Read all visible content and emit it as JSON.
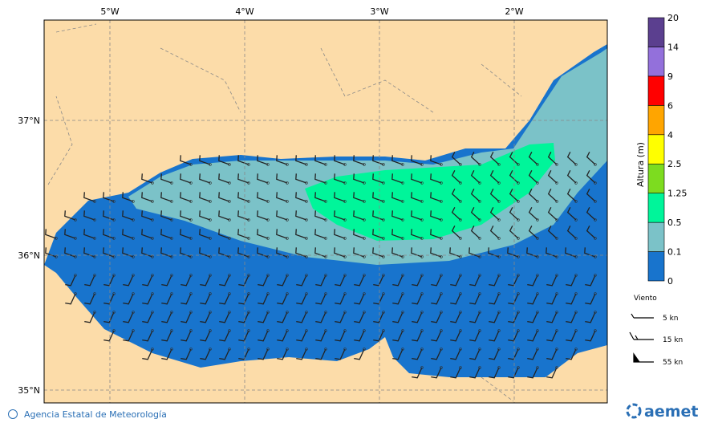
{
  "map": {
    "lon_labels": [
      "5°W",
      "4°W",
      "3°W",
      "2°W"
    ],
    "lat_labels": [
      "37°N",
      "36°N",
      "35°N"
    ]
  },
  "colorbar": {
    "title": "Altura (m)",
    "levels": [
      "0",
      "0.1",
      "0.5",
      "1.25",
      "2.5",
      "4",
      "6",
      "9",
      "14",
      "20"
    ],
    "colors": [
      "#1874cd",
      "#7bc2c8",
      "#00f59a",
      "#7ddc1f",
      "#ffff00",
      "#ffa500",
      "#ff0000",
      "#9370db",
      "#5b3f8f"
    ]
  },
  "wind_legend": {
    "title": "Viento",
    "items": [
      "5 kn",
      "15 kn",
      "55 kn"
    ]
  },
  "footer": {
    "credit": "Agencia Estatal de Meteorología",
    "logo": "aemet"
  }
}
